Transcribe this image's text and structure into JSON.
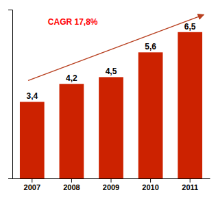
{
  "chart_data": {
    "type": "bar",
    "categories": [
      "2007",
      "2008",
      "2009",
      "2010",
      "2011"
    ],
    "values": [
      3.4,
      4.2,
      4.5,
      5.6,
      6.5
    ],
    "value_labels": [
      "3,4",
      "4,2",
      "4,5",
      "5,6",
      "6,5"
    ],
    "data_labels": true,
    "color": "#CC2200",
    "ylim": [
      0,
      7.5
    ],
    "yticks": [],
    "tick_labels": "x",
    "grid": false,
    "annotations": [
      {
        "text": "CAGR 17,8%",
        "color": "#FF0000"
      }
    ]
  }
}
